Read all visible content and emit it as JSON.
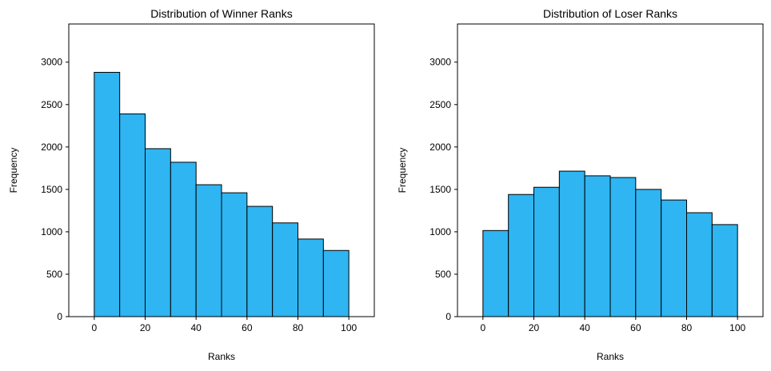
{
  "chart_data": [
    {
      "type": "bar",
      "title": "Distribution of Winner Ranks",
      "xlabel": "Ranks",
      "ylabel": "Frequency",
      "bin_edges": [
        0,
        10,
        20,
        30,
        40,
        50,
        60,
        70,
        80,
        90,
        100
      ],
      "values": [
        2880,
        2390,
        1980,
        1820,
        1555,
        1460,
        1300,
        1105,
        915,
        780
      ],
      "xlim": [
        -10,
        110
      ],
      "ylim": [
        0,
        3450
      ],
      "xticks": [
        0,
        20,
        40,
        60,
        80,
        100
      ],
      "yticks": [
        0,
        500,
        1000,
        1500,
        2000,
        2500,
        3000
      ],
      "bar_color": "#2EB5F2",
      "edge_color": "#000000",
      "grid": false
    },
    {
      "type": "bar",
      "title": "Distribution of Loser Ranks",
      "xlabel": "Ranks",
      "ylabel": "Frequency",
      "bin_edges": [
        0,
        10,
        20,
        30,
        40,
        50,
        60,
        70,
        80,
        90,
        100
      ],
      "values": [
        1015,
        1440,
        1525,
        1715,
        1660,
        1640,
        1500,
        1375,
        1225,
        1085
      ],
      "xlim": [
        -10,
        110
      ],
      "ylim": [
        0,
        3450
      ],
      "xticks": [
        0,
        20,
        40,
        60,
        80,
        100
      ],
      "yticks": [
        0,
        500,
        1000,
        1500,
        2000,
        2500,
        3000
      ],
      "bar_color": "#2EB5F2",
      "edge_color": "#000000",
      "grid": false
    }
  ]
}
